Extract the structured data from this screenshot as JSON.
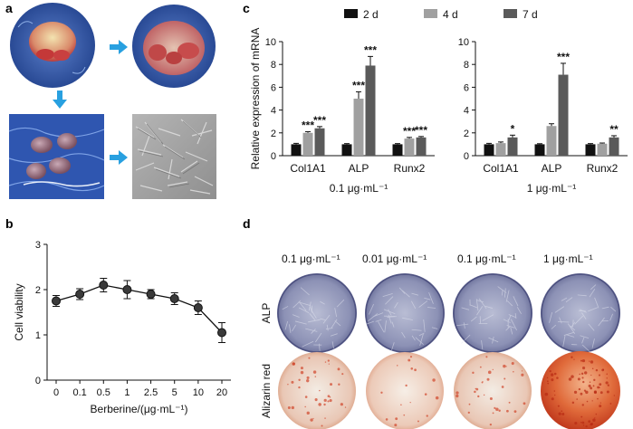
{
  "panels": {
    "a": {
      "label": "a"
    },
    "b": {
      "label": "b"
    },
    "c": {
      "label": "c"
    },
    "d": {
      "label": "d"
    }
  },
  "panel_a": {
    "photos": [
      "tissue-explant-photo",
      "tissue-explant-day-photo",
      "tissue-fragments-photo",
      "cells-microscopy-photo"
    ]
  },
  "panel_d": {
    "column_labels": [
      "0.1 μg·mL⁻¹",
      "0.01 μg·mL⁻¹",
      "0.1 μg·mL⁻¹",
      "1 μg·mL⁻¹"
    ],
    "row_labels": [
      "ALP",
      "Alizarin red"
    ]
  },
  "chart_data": [
    {
      "id": "b",
      "type": "line",
      "title": "",
      "xlabel": "Berberine/(μg·mL⁻¹)",
      "ylabel": "Cell viability",
      "categories": [
        "0",
        "0.1",
        "0.5",
        "1",
        "2.5",
        "5",
        "10",
        "20"
      ],
      "values": [
        1.75,
        1.9,
        2.1,
        2.0,
        1.9,
        1.8,
        1.6,
        1.05
      ],
      "errors": [
        0.12,
        0.12,
        0.15,
        0.2,
        0.1,
        0.13,
        0.15,
        0.22
      ],
      "ylim": [
        0,
        3
      ],
      "yticks": [
        0,
        1,
        2,
        3
      ]
    },
    {
      "id": "c",
      "type": "bar",
      "ylabel": "Relative expression of mRNA",
      "ylim": [
        0,
        10
      ],
      "yticks": [
        0,
        2,
        4,
        6,
        8,
        10
      ],
      "legend": [
        {
          "name": "2 d",
          "color": "#111111"
        },
        {
          "name": "4 d",
          "color": "#a0a0a0"
        },
        {
          "name": "7 d",
          "color": "#5a5a5a"
        }
      ],
      "groups": [
        {
          "xlabel": "0.1 μg·mL⁻¹",
          "categories": [
            "Col1A1",
            "ALP",
            "Runx2"
          ],
          "series": [
            {
              "name": "2 d",
              "values": [
                1.0,
                1.0,
                1.0
              ],
              "errors": [
                0.08,
                0.06,
                0.06
              ]
            },
            {
              "name": "4 d",
              "values": [
                2.0,
                5.0,
                1.5
              ],
              "errors": [
                0.1,
                0.6,
                0.1
              ]
            },
            {
              "name": "7 d",
              "values": [
                2.4,
                7.9,
                1.6
              ],
              "errors": [
                0.15,
                0.8,
                0.08
              ]
            }
          ],
          "significance": [
            [
              "",
              "***",
              "***"
            ],
            [
              "",
              "***",
              "***"
            ],
            [
              "",
              "***",
              "***"
            ]
          ]
        },
        {
          "xlabel": "1 μg·mL⁻¹",
          "categories": [
            "Col1A1",
            "ALP",
            "Runx2"
          ],
          "series": [
            {
              "name": "2 d",
              "values": [
                1.0,
                1.0,
                1.0
              ],
              "errors": [
                0.08,
                0.05,
                0.06
              ]
            },
            {
              "name": "4 d",
              "values": [
                1.1,
                2.6,
                1.05
              ],
              "errors": [
                0.1,
                0.2,
                0.06
              ]
            },
            {
              "name": "7 d",
              "values": [
                1.6,
                7.1,
                1.6
              ],
              "errors": [
                0.2,
                1.0,
                0.15
              ]
            }
          ],
          "significance": [
            [
              "",
              "",
              "*"
            ],
            [
              "",
              "",
              "***"
            ],
            [
              "",
              "",
              "**"
            ]
          ]
        }
      ]
    }
  ]
}
